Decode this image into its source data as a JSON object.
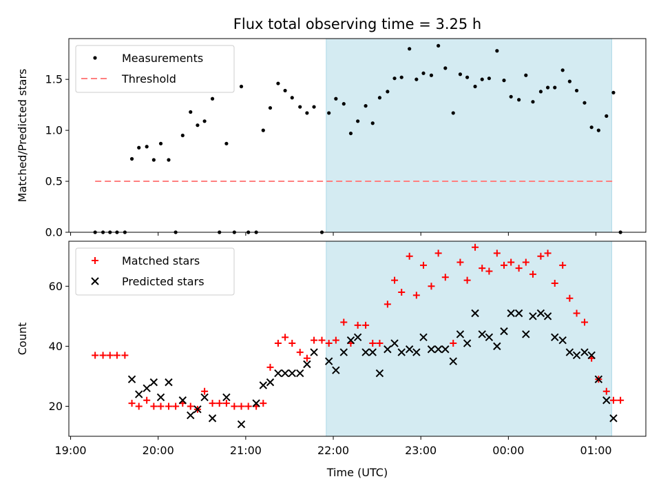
{
  "title": "Flux total observing time = 3.25 h",
  "xlabel": "Time (UTC)",
  "xticks": [
    "19:00",
    "20:00",
    "21:00",
    "22:00",
    "23:00",
    "00:00",
    "01:00"
  ],
  "colors": {
    "measurements": "#000000",
    "threshold": "#ff7f7f",
    "matched": "#ff0000",
    "predicted": "#000000",
    "shade": "#add8e6"
  },
  "chart_data": [
    {
      "type": "scatter",
      "ylabel": "Matched/Predicted stars",
      "yticks": [
        "0.0",
        "0.5",
        "1.0",
        "1.5"
      ],
      "ylim": [
        0,
        1.9
      ],
      "xlim_hours": [
        18.98,
        25.57
      ],
      "shaded_span_hours": [
        21.92,
        25.18
      ],
      "legend": {
        "position": "top-left",
        "entries": [
          "Measurements",
          "Threshold"
        ]
      },
      "threshold": {
        "y": 0.5,
        "x_range_hours": [
          19.28,
          25.22
        ]
      },
      "series": [
        {
          "name": "Measurements",
          "marker": "dot",
          "x_hours": [
            19.28,
            19.37,
            19.45,
            19.53,
            19.62,
            19.7,
            19.78,
            19.87,
            19.95,
            20.03,
            20.12,
            20.2,
            20.28,
            20.37,
            20.45,
            20.53,
            20.62,
            20.7,
            20.78,
            20.87,
            20.95,
            21.03,
            21.12,
            21.2,
            21.28,
            21.37,
            21.45,
            21.53,
            21.62,
            21.7,
            21.78,
            21.87,
            21.95,
            22.03,
            22.12,
            22.2,
            22.28,
            22.37,
            22.45,
            22.53,
            22.62,
            22.7,
            22.78,
            22.87,
            22.95,
            23.03,
            23.12,
            23.2,
            23.28,
            23.37,
            23.45,
            23.53,
            23.62,
            23.7,
            23.78,
            23.87,
            23.95,
            24.03,
            24.12,
            24.2,
            24.28,
            24.37,
            24.45,
            24.53,
            24.62,
            24.7,
            24.78,
            24.87,
            24.95,
            25.03,
            25.12,
            25.2,
            25.28
          ],
          "y": [
            0,
            0,
            0,
            0,
            0,
            0.72,
            0.83,
            0.84,
            0.71,
            0.87,
            0.71,
            0,
            0.95,
            1.18,
            1.05,
            1.09,
            1.31,
            0,
            0.87,
            0,
            1.43,
            0,
            0,
            1.0,
            1.22,
            1.46,
            1.39,
            1.32,
            1.23,
            1.17,
            1.23,
            0,
            1.17,
            1.31,
            1.26,
            0.97,
            1.09,
            1.24,
            1.07,
            1.32,
            1.38,
            1.51,
            1.52,
            1.8,
            1.5,
            1.56,
            1.54,
            1.83,
            1.61,
            1.17,
            1.55,
            1.52,
            1.43,
            1.5,
            1.51,
            1.78,
            1.49,
            1.33,
            1.3,
            1.54,
            1.28,
            1.38,
            1.42,
            1.42,
            1.59,
            1.48,
            1.39,
            1.27,
            1.03,
            1.0,
            1.14,
            1.37,
            0
          ]
        }
      ]
    },
    {
      "type": "scatter",
      "ylabel": "Count",
      "yticks": [
        "20",
        "40",
        "60"
      ],
      "ylim": [
        10,
        75
      ],
      "xlim_hours": [
        18.98,
        25.57
      ],
      "shaded_span_hours": [
        21.92,
        25.18
      ],
      "legend": {
        "position": "top-left",
        "entries": [
          "Matched stars",
          "Predicted stars"
        ]
      },
      "series": [
        {
          "name": "Matched stars",
          "marker": "plus",
          "x_hours": [
            19.28,
            19.37,
            19.45,
            19.53,
            19.62,
            19.7,
            19.78,
            19.87,
            19.95,
            20.03,
            20.12,
            20.2,
            20.28,
            20.37,
            20.45,
            20.53,
            20.62,
            20.7,
            20.78,
            20.87,
            20.95,
            21.03,
            21.12,
            21.2,
            21.28,
            21.37,
            21.45,
            21.53,
            21.62,
            21.7,
            21.78,
            21.87,
            21.95,
            22.03,
            22.12,
            22.2,
            22.28,
            22.37,
            22.45,
            22.53,
            22.62,
            22.7,
            22.78,
            22.87,
            22.95,
            23.03,
            23.12,
            23.2,
            23.28,
            23.37,
            23.45,
            23.53,
            23.62,
            23.7,
            23.78,
            23.87,
            23.95,
            24.03,
            24.12,
            24.2,
            24.28,
            24.37,
            24.45,
            24.53,
            24.62,
            24.7,
            24.78,
            24.87,
            24.95,
            25.03,
            25.12,
            25.2,
            25.28
          ],
          "y": [
            37,
            37,
            37,
            37,
            37,
            21,
            20,
            22,
            20,
            20,
            20,
            20,
            21,
            20,
            19,
            25,
            21,
            21,
            21,
            20,
            20,
            20,
            20,
            21,
            33,
            41,
            43,
            41,
            38,
            36,
            42,
            42,
            41,
            42,
            48,
            41,
            47,
            47,
            41,
            41,
            54,
            62,
            58,
            70,
            57,
            67,
            60,
            71,
            63,
            41,
            68,
            62,
            73,
            66,
            65,
            71,
            67,
            68,
            66,
            68,
            64,
            70,
            71,
            61,
            67,
            56,
            51,
            48,
            36,
            29,
            25,
            22,
            22
          ]
        },
        {
          "name": "Predicted stars",
          "marker": "x",
          "x_hours": [
            19.7,
            19.78,
            19.87,
            19.95,
            20.03,
            20.12,
            20.28,
            20.37,
            20.45,
            20.53,
            20.62,
            20.78,
            20.95,
            21.12,
            21.2,
            21.28,
            21.37,
            21.45,
            21.53,
            21.62,
            21.7,
            21.78,
            21.95,
            22.03,
            22.12,
            22.2,
            22.28,
            22.37,
            22.45,
            22.53,
            22.62,
            22.7,
            22.78,
            22.87,
            22.95,
            23.03,
            23.12,
            23.2,
            23.28,
            23.37,
            23.45,
            23.53,
            23.62,
            23.7,
            23.78,
            23.87,
            23.95,
            24.03,
            24.12,
            24.2,
            24.28,
            24.37,
            24.45,
            24.53,
            24.62,
            24.7,
            24.78,
            24.87,
            24.95,
            25.03,
            25.12,
            25.2
          ],
          "y": [
            29,
            24,
            26,
            28,
            23,
            28,
            22,
            17,
            19,
            23,
            16,
            23,
            14,
            21,
            27,
            28,
            31,
            31,
            31,
            31,
            34,
            38,
            35,
            32,
            38,
            42,
            43,
            38,
            38,
            31,
            39,
            41,
            38,
            39,
            38,
            43,
            39,
            39,
            39,
            35,
            44,
            41,
            51,
            44,
            43,
            40,
            45,
            51,
            51,
            44,
            50,
            51,
            50,
            43,
            42,
            38,
            37,
            38,
            37,
            29,
            22,
            16
          ]
        }
      ]
    }
  ]
}
